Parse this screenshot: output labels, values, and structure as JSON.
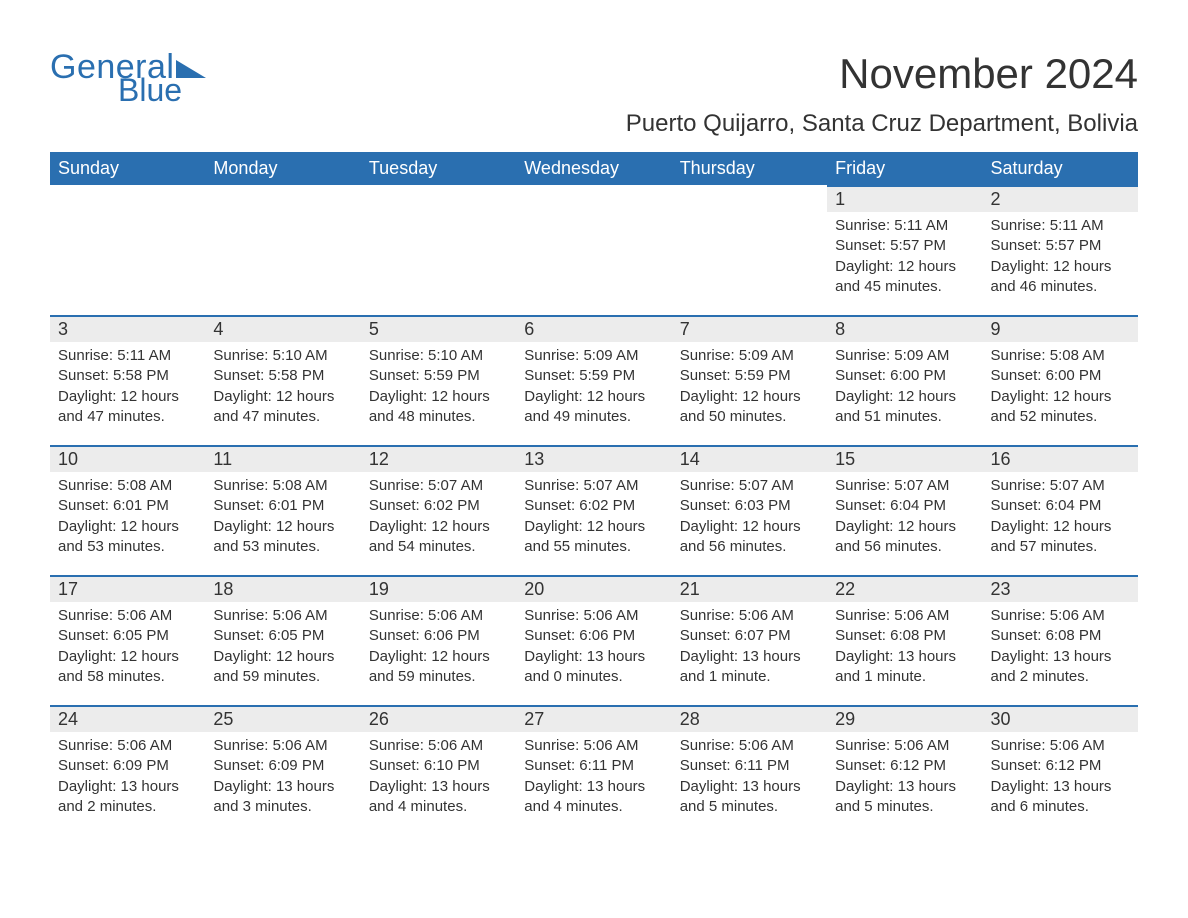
{
  "logo": {
    "word1": "General",
    "word2": "Blue",
    "brand_color": "#2a6fb0"
  },
  "title": "November 2024",
  "location": "Puerto Quijarro, Santa Cruz Department, Bolivia",
  "colors": {
    "header_bg": "#2a6fb0",
    "header_text": "#ffffff",
    "daynum_bg": "#ececec",
    "daynum_border": "#2a6fb0",
    "body_text": "#333333",
    "page_bg": "#ffffff"
  },
  "weekdays": [
    "Sunday",
    "Monday",
    "Tuesday",
    "Wednesday",
    "Thursday",
    "Friday",
    "Saturday"
  ],
  "weeks": [
    [
      {
        "blank": true
      },
      {
        "blank": true
      },
      {
        "blank": true
      },
      {
        "blank": true
      },
      {
        "blank": true
      },
      {
        "day": "1",
        "sunrise": "Sunrise: 5:11 AM",
        "sunset": "Sunset: 5:57 PM",
        "daylight": "Daylight: 12 hours and 45 minutes."
      },
      {
        "day": "2",
        "sunrise": "Sunrise: 5:11 AM",
        "sunset": "Sunset: 5:57 PM",
        "daylight": "Daylight: 12 hours and 46 minutes."
      }
    ],
    [
      {
        "day": "3",
        "sunrise": "Sunrise: 5:11 AM",
        "sunset": "Sunset: 5:58 PM",
        "daylight": "Daylight: 12 hours and 47 minutes."
      },
      {
        "day": "4",
        "sunrise": "Sunrise: 5:10 AM",
        "sunset": "Sunset: 5:58 PM",
        "daylight": "Daylight: 12 hours and 47 minutes."
      },
      {
        "day": "5",
        "sunrise": "Sunrise: 5:10 AM",
        "sunset": "Sunset: 5:59 PM",
        "daylight": "Daylight: 12 hours and 48 minutes."
      },
      {
        "day": "6",
        "sunrise": "Sunrise: 5:09 AM",
        "sunset": "Sunset: 5:59 PM",
        "daylight": "Daylight: 12 hours and 49 minutes."
      },
      {
        "day": "7",
        "sunrise": "Sunrise: 5:09 AM",
        "sunset": "Sunset: 5:59 PM",
        "daylight": "Daylight: 12 hours and 50 minutes."
      },
      {
        "day": "8",
        "sunrise": "Sunrise: 5:09 AM",
        "sunset": "Sunset: 6:00 PM",
        "daylight": "Daylight: 12 hours and 51 minutes."
      },
      {
        "day": "9",
        "sunrise": "Sunrise: 5:08 AM",
        "sunset": "Sunset: 6:00 PM",
        "daylight": "Daylight: 12 hours and 52 minutes."
      }
    ],
    [
      {
        "day": "10",
        "sunrise": "Sunrise: 5:08 AM",
        "sunset": "Sunset: 6:01 PM",
        "daylight": "Daylight: 12 hours and 53 minutes."
      },
      {
        "day": "11",
        "sunrise": "Sunrise: 5:08 AM",
        "sunset": "Sunset: 6:01 PM",
        "daylight": "Daylight: 12 hours and 53 minutes."
      },
      {
        "day": "12",
        "sunrise": "Sunrise: 5:07 AM",
        "sunset": "Sunset: 6:02 PM",
        "daylight": "Daylight: 12 hours and 54 minutes."
      },
      {
        "day": "13",
        "sunrise": "Sunrise: 5:07 AM",
        "sunset": "Sunset: 6:02 PM",
        "daylight": "Daylight: 12 hours and 55 minutes."
      },
      {
        "day": "14",
        "sunrise": "Sunrise: 5:07 AM",
        "sunset": "Sunset: 6:03 PM",
        "daylight": "Daylight: 12 hours and 56 minutes."
      },
      {
        "day": "15",
        "sunrise": "Sunrise: 5:07 AM",
        "sunset": "Sunset: 6:04 PM",
        "daylight": "Daylight: 12 hours and 56 minutes."
      },
      {
        "day": "16",
        "sunrise": "Sunrise: 5:07 AM",
        "sunset": "Sunset: 6:04 PM",
        "daylight": "Daylight: 12 hours and 57 minutes."
      }
    ],
    [
      {
        "day": "17",
        "sunrise": "Sunrise: 5:06 AM",
        "sunset": "Sunset: 6:05 PM",
        "daylight": "Daylight: 12 hours and 58 minutes."
      },
      {
        "day": "18",
        "sunrise": "Sunrise: 5:06 AM",
        "sunset": "Sunset: 6:05 PM",
        "daylight": "Daylight: 12 hours and 59 minutes."
      },
      {
        "day": "19",
        "sunrise": "Sunrise: 5:06 AM",
        "sunset": "Sunset: 6:06 PM",
        "daylight": "Daylight: 12 hours and 59 minutes."
      },
      {
        "day": "20",
        "sunrise": "Sunrise: 5:06 AM",
        "sunset": "Sunset: 6:06 PM",
        "daylight": "Daylight: 13 hours and 0 minutes."
      },
      {
        "day": "21",
        "sunrise": "Sunrise: 5:06 AM",
        "sunset": "Sunset: 6:07 PM",
        "daylight": "Daylight: 13 hours and 1 minute."
      },
      {
        "day": "22",
        "sunrise": "Sunrise: 5:06 AM",
        "sunset": "Sunset: 6:08 PM",
        "daylight": "Daylight: 13 hours and 1 minute."
      },
      {
        "day": "23",
        "sunrise": "Sunrise: 5:06 AM",
        "sunset": "Sunset: 6:08 PM",
        "daylight": "Daylight: 13 hours and 2 minutes."
      }
    ],
    [
      {
        "day": "24",
        "sunrise": "Sunrise: 5:06 AM",
        "sunset": "Sunset: 6:09 PM",
        "daylight": "Daylight: 13 hours and 2 minutes."
      },
      {
        "day": "25",
        "sunrise": "Sunrise: 5:06 AM",
        "sunset": "Sunset: 6:09 PM",
        "daylight": "Daylight: 13 hours and 3 minutes."
      },
      {
        "day": "26",
        "sunrise": "Sunrise: 5:06 AM",
        "sunset": "Sunset: 6:10 PM",
        "daylight": "Daylight: 13 hours and 4 minutes."
      },
      {
        "day": "27",
        "sunrise": "Sunrise: 5:06 AM",
        "sunset": "Sunset: 6:11 PM",
        "daylight": "Daylight: 13 hours and 4 minutes."
      },
      {
        "day": "28",
        "sunrise": "Sunrise: 5:06 AM",
        "sunset": "Sunset: 6:11 PM",
        "daylight": "Daylight: 13 hours and 5 minutes."
      },
      {
        "day": "29",
        "sunrise": "Sunrise: 5:06 AM",
        "sunset": "Sunset: 6:12 PM",
        "daylight": "Daylight: 13 hours and 5 minutes."
      },
      {
        "day": "30",
        "sunrise": "Sunrise: 5:06 AM",
        "sunset": "Sunset: 6:12 PM",
        "daylight": "Daylight: 13 hours and 6 minutes."
      }
    ]
  ]
}
